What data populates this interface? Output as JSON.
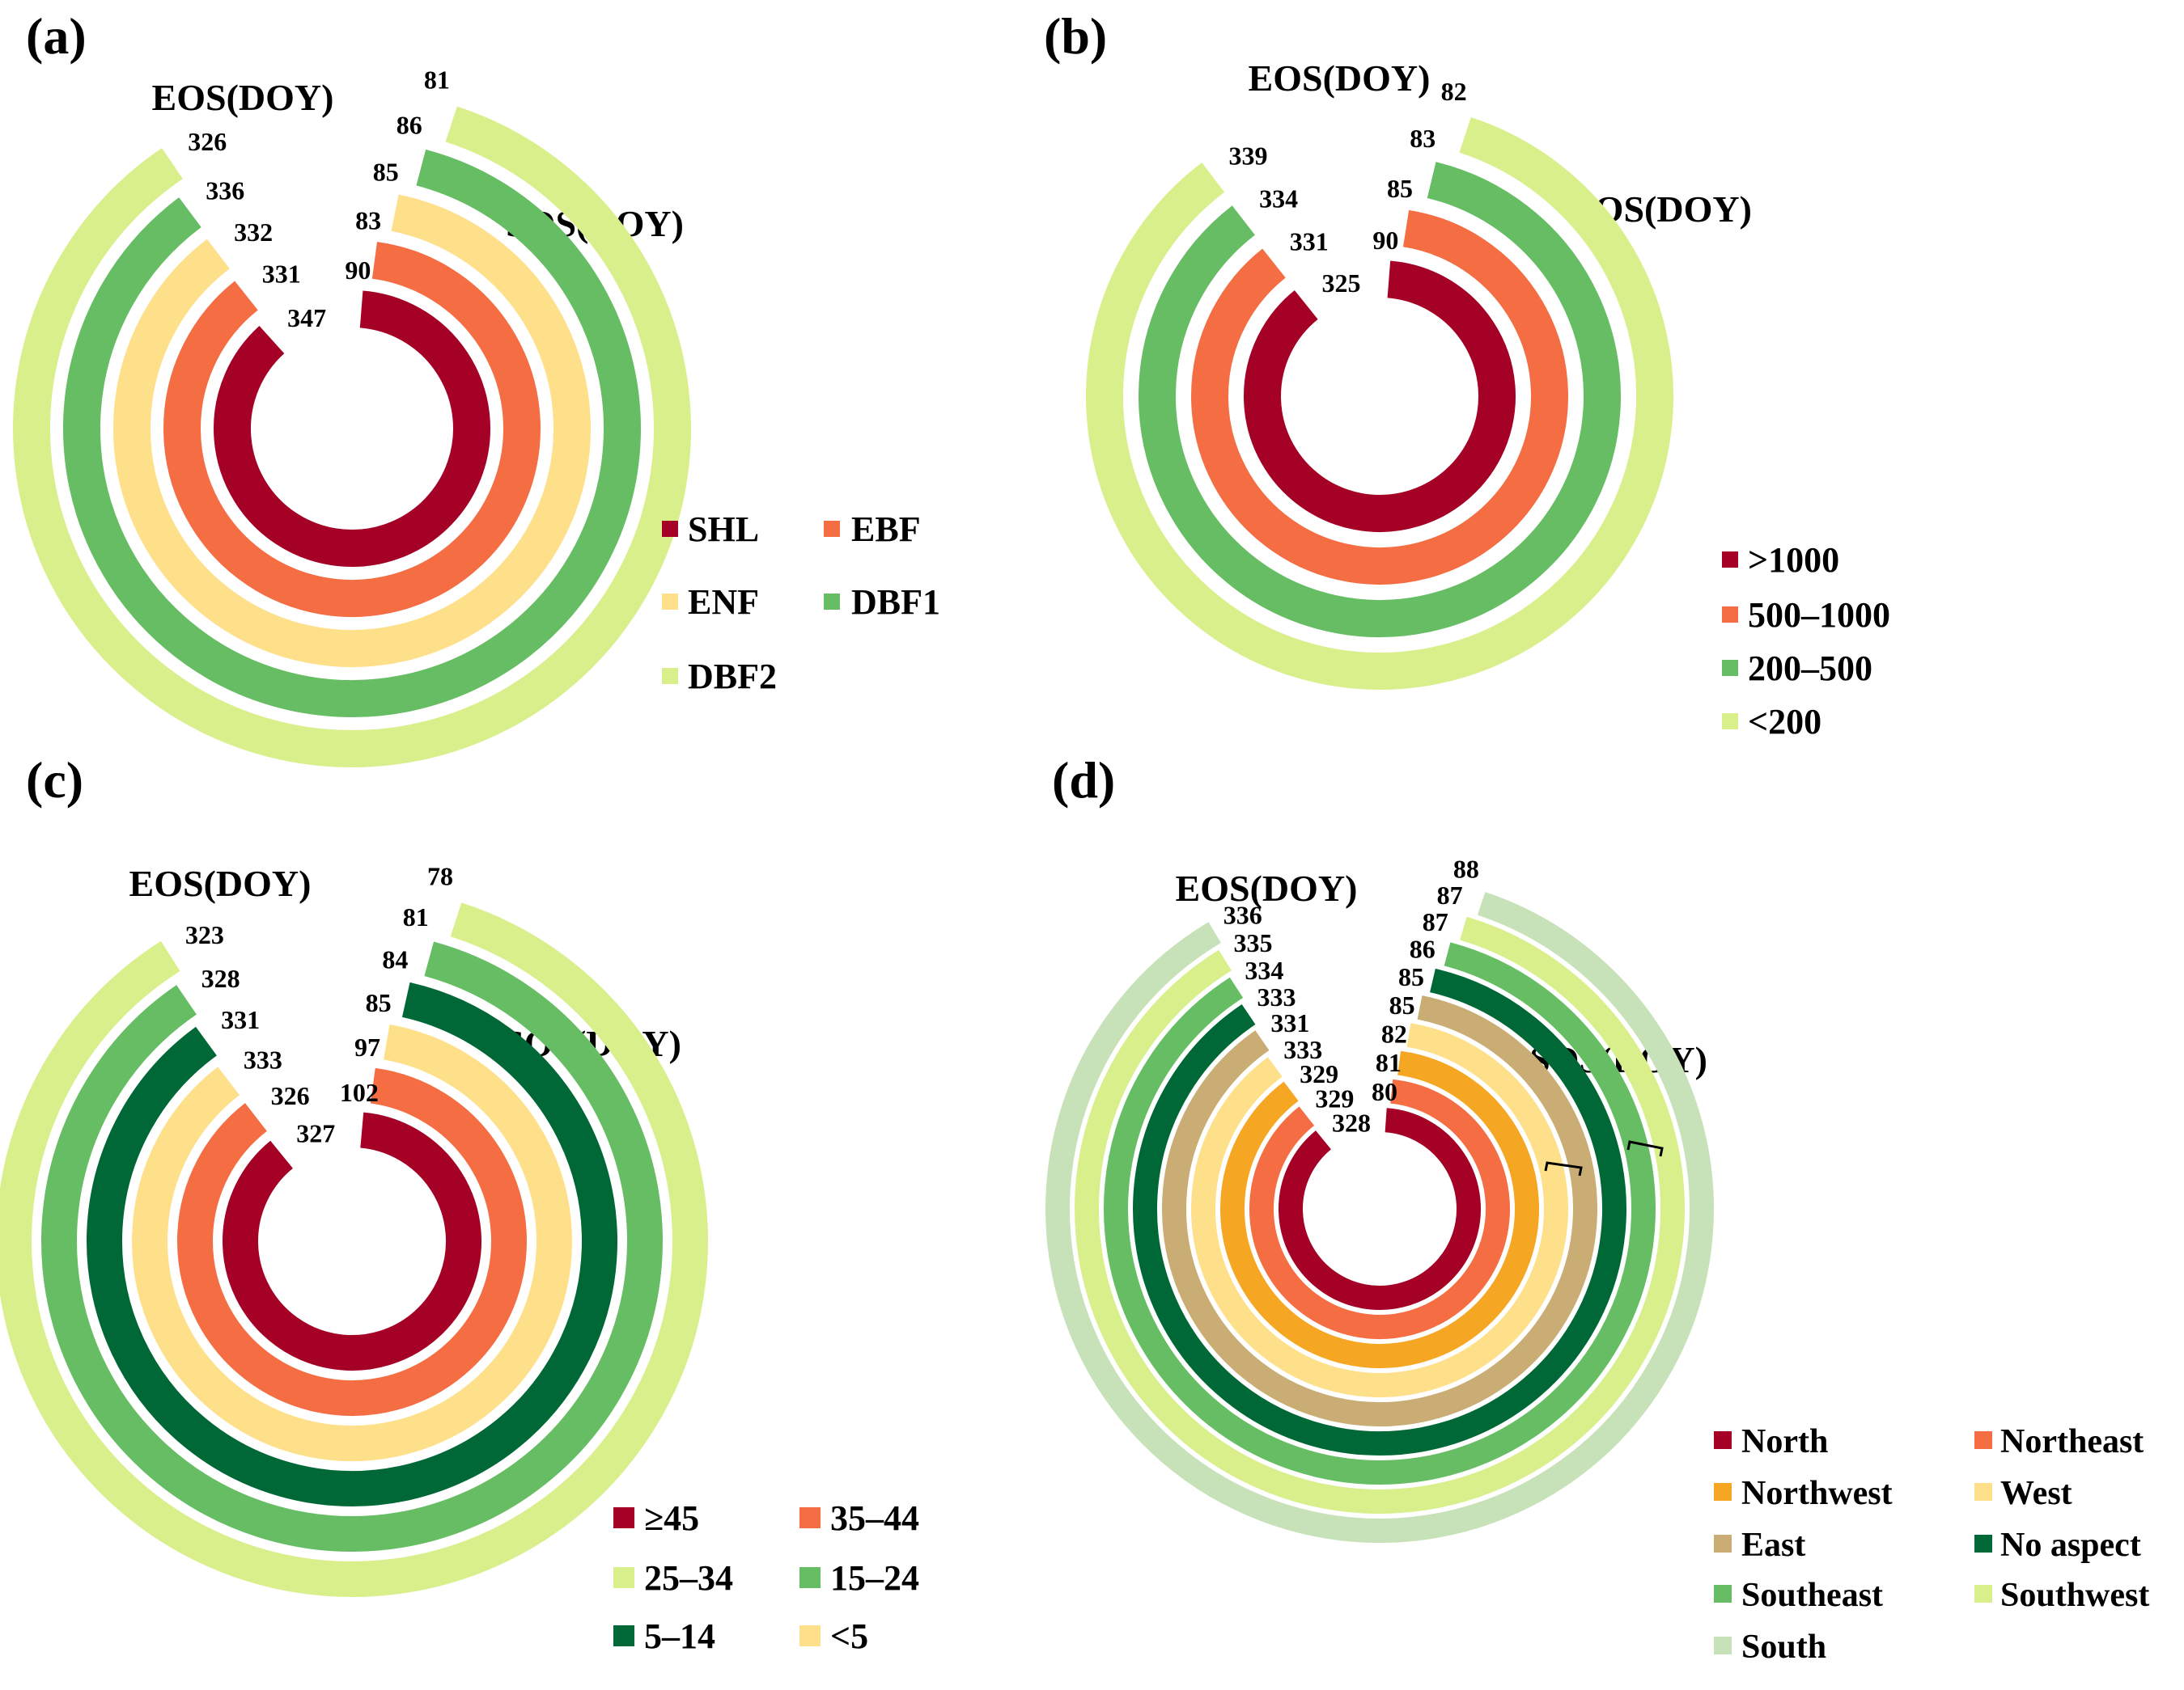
{
  "chart_data": [
    {
      "type": "radial-bar",
      "panel": "(a)",
      "eos_title": "EOS(DOY)",
      "sos_title": "SOS(DOY)",
      "series": [
        {
          "name": "SHL",
          "sos": 90,
          "eos": 347,
          "color": "#a50026"
        },
        {
          "name": "EBF",
          "sos": 83,
          "eos": 331,
          "color": "#f46d43"
        },
        {
          "name": "ENF",
          "sos": 85,
          "eos": 332,
          "color": "#fee08b"
        },
        {
          "name": "DBF1",
          "sos": 86,
          "eos": 336,
          "color": "#66bd63"
        },
        {
          "name": "DBF2",
          "sos": 81,
          "eos": 326,
          "color": "#d9ef8b"
        }
      ]
    },
    {
      "type": "radial-bar",
      "panel": "(b)",
      "eos_title": "EOS(DOY)",
      "sos_title": "SOS(DOY)",
      "series": [
        {
          "name": ">1000",
          "sos": 90,
          "eos": 325,
          "color": "#a50026"
        },
        {
          "name": "500–1000",
          "sos": 85,
          "eos": 331,
          "color": "#f46d43"
        },
        {
          "name": "200–500",
          "sos": 83,
          "eos": 334,
          "color": "#66bd63"
        },
        {
          "name": "<200",
          "sos": 82,
          "eos": 339,
          "color": "#d9ef8b"
        }
      ]
    },
    {
      "type": "radial-bar",
      "panel": "(c)",
      "eos_title": "EOS(DOY)",
      "sos_title": "SOS(DOY)",
      "series": [
        {
          "name": "≥45",
          "sos": 102,
          "eos": 327,
          "color": "#a50026"
        },
        {
          "name": "35–44",
          "sos": 97,
          "eos": 326,
          "color": "#f46d43"
        },
        {
          "name": "<5",
          "sos": 85,
          "eos": 333,
          "color": "#fee08b"
        },
        {
          "name": "5–14",
          "sos": 84,
          "eos": 331,
          "color": "#006837"
        },
        {
          "name": "15–24",
          "sos": 81,
          "eos": 328,
          "color": "#66bd63"
        },
        {
          "name": "25–34",
          "sos": 78,
          "eos": 323,
          "color": "#d9ef8b"
        }
      ]
    },
    {
      "type": "radial-bar",
      "panel": "(d)",
      "eos_title": "EOS(DOY)",
      "sos_title": "SOS(DOY)",
      "series": [
        {
          "name": "North",
          "sos": 80,
          "eos": 328,
          "color": "#a50026"
        },
        {
          "name": "Northeast",
          "sos": 81,
          "eos": 329,
          "color": "#f46d43"
        },
        {
          "name": "Northwest",
          "sos": 82,
          "eos": 329,
          "color": "#f5a623"
        },
        {
          "name": "West",
          "sos": 85,
          "eos": 333,
          "color": "#fee08b"
        },
        {
          "name": "East",
          "sos": 85,
          "eos": 331,
          "color": "#c9ad74"
        },
        {
          "name": "No aspect",
          "sos": 86,
          "eos": 333,
          "color": "#006837"
        },
        {
          "name": "Southeast",
          "sos": 87,
          "eos": 334,
          "color": "#66bd63"
        },
        {
          "name": "Southwest",
          "sos": 87,
          "eos": 335,
          "color": "#d9ef8b"
        },
        {
          "name": "South",
          "sos": 88,
          "eos": 336,
          "color": "#c7e1b8"
        }
      ],
      "brackets": [
        "West-East",
        "Southeast-Southwest"
      ]
    }
  ]
}
